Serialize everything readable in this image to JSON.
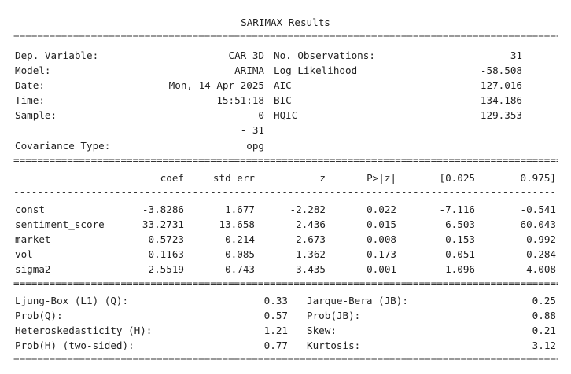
{
  "title": "SARIMAX Results",
  "rule_double": "==================================================================================================",
  "rule_single": "--------------------------------------------------------------------------------------------------",
  "info_left": [
    {
      "label": "Dep. Variable:",
      "value": "CAR_3D"
    },
    {
      "label": "Model:",
      "value": "ARIMA"
    },
    {
      "label": "Date:",
      "value": "Mon, 14 Apr 2025"
    },
    {
      "label": "Time:",
      "value": "15:51:18"
    },
    {
      "label": "Sample:",
      "value": "0"
    },
    {
      "label": "",
      "value": "- 31"
    },
    {
      "label": "Covariance Type:",
      "value": "opg"
    }
  ],
  "info_right": [
    {
      "label": "No. Observations:",
      "value": "31"
    },
    {
      "label": "Log Likelihood",
      "value": "-58.508"
    },
    {
      "label": "AIC",
      "value": "127.016"
    },
    {
      "label": "BIC",
      "value": "134.186"
    },
    {
      "label": "HQIC",
      "value": "129.353"
    }
  ],
  "coef_headers": [
    "coef",
    "std err",
    "z",
    "P>|z|",
    "[0.025",
    "0.975]"
  ],
  "coef_rows": [
    {
      "name": "const",
      "values": [
        "-3.8286",
        "1.677",
        "-2.282",
        "0.022",
        "-7.116",
        "-0.541"
      ]
    },
    {
      "name": "sentiment_score",
      "values": [
        "33.2731",
        "13.658",
        "2.436",
        "0.015",
        "6.503",
        "60.043"
      ]
    },
    {
      "name": "market",
      "values": [
        "0.5723",
        "0.214",
        "2.673",
        "0.008",
        "0.153",
        "0.992"
      ]
    },
    {
      "name": "vol",
      "values": [
        "0.1163",
        "0.085",
        "1.362",
        "0.173",
        "-0.051",
        "0.284"
      ]
    },
    {
      "name": "sigma2",
      "values": [
        "2.5519",
        "0.743",
        "3.435",
        "0.001",
        "1.096",
        "4.008"
      ]
    }
  ],
  "diag_left": [
    {
      "label": "Ljung-Box (L1) (Q):",
      "value": "0.33"
    },
    {
      "label": "Prob(Q):",
      "value": "0.57"
    },
    {
      "label": "Heteroskedasticity (H):",
      "value": "1.21"
    },
    {
      "label": "Prob(H) (two-sided):",
      "value": "0.77"
    }
  ],
  "diag_right": [
    {
      "label": "Jarque-Bera (JB):",
      "value": "0.25"
    },
    {
      "label": "Prob(JB):",
      "value": "0.88"
    },
    {
      "label": "Skew:",
      "value": "0.21"
    },
    {
      "label": "Kurtosis:",
      "value": "3.12"
    }
  ]
}
